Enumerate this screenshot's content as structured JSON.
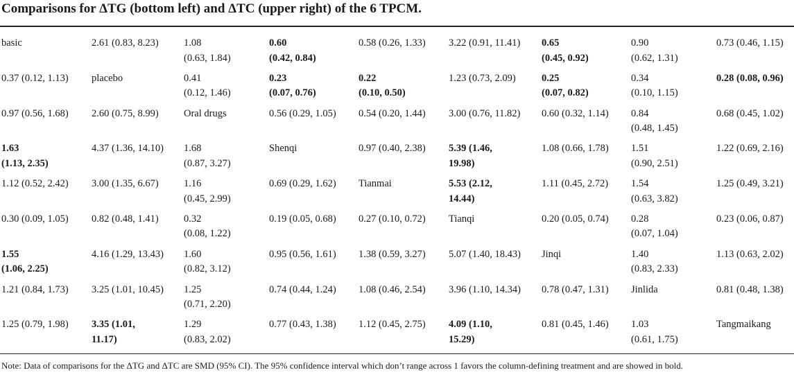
{
  "title": "Comparisons for ΔTG (bottom left) and ΔTC (upper right) of the 6 TPCM.",
  "note": "Note: Data of comparisons for the ΔTG and ΔTC are SMD (95% CI). The 95% confidence interval which don’t range across 1 favors the column-defining treatment and are showed in bold.",
  "rows": [
    [
      {
        "t": "basic",
        "b": false
      },
      {
        "t": "2.61 (0.83, 8.23)",
        "b": false
      },
      {
        "t": "1.08\n(0.63, 1.84)",
        "b": false
      },
      {
        "t": "0.60\n(0.42, 0.84)",
        "b": true
      },
      {
        "t": "0.58 (0.26, 1.33)",
        "b": false
      },
      {
        "t": "3.22 (0.91, 11.41)",
        "b": false
      },
      {
        "t": "0.65\n(0.45, 0.92)",
        "b": true
      },
      {
        "t": "0.90\n(0.62, 1.31)",
        "b": false
      },
      {
        "t": "0.73 (0.46, 1.15)",
        "b": false
      }
    ],
    [
      {
        "t": "0.37 (0.12, 1.13)",
        "b": false
      },
      {
        "t": "placebo",
        "b": false
      },
      {
        "t": "0.41\n(0.12, 1.46)",
        "b": false
      },
      {
        "t": "0.23\n(0.07, 0.76)",
        "b": true
      },
      {
        "t": "0.22\n(0.10, 0.50)",
        "b": true
      },
      {
        "t": "1.23 (0.73, 2.09)",
        "b": false
      },
      {
        "t": "0.25\n(0.07, 0.82)",
        "b": true
      },
      {
        "t": "0.34\n(0.10, 1.15)",
        "b": false
      },
      {
        "t": "0.28 (0.08, 0.96)",
        "b": true
      }
    ],
    [
      {
        "t": "0.97 (0.56, 1.68)",
        "b": false
      },
      {
        "t": "2.60 (0.75, 8.99)",
        "b": false
      },
      {
        "t": "Oral drugs",
        "b": false
      },
      {
        "t": "0.56 (0.29, 1.05)",
        "b": false
      },
      {
        "t": "0.54 (0.20, 1.44)",
        "b": false
      },
      {
        "t": "3.00 (0.76, 11.82)",
        "b": false
      },
      {
        "t": "0.60 (0.32, 1.14)",
        "b": false
      },
      {
        "t": "0.84\n(0.48, 1.45)",
        "b": false
      },
      {
        "t": "0.68 (0.45, 1.02)",
        "b": false
      }
    ],
    [
      {
        "t": "1.63\n(1.13, 2.35)",
        "b": true
      },
      {
        "t": "4.37 (1.36, 14.10)",
        "b": false
      },
      {
        "t": "1.68\n(0.87, 3.27)",
        "b": false
      },
      {
        "t": "Shenqi",
        "b": false
      },
      {
        "t": "0.97 (0.40, 2.38)",
        "b": false
      },
      {
        "t": "5.39 (1.46,\n19.98)",
        "b": true
      },
      {
        "t": "1.08 (0.66, 1.78)",
        "b": false
      },
      {
        "t": "1.51\n(0.90, 2.51)",
        "b": false
      },
      {
        "t": "1.22 (0.69, 2.16)",
        "b": false
      }
    ],
    [
      {
        "t": "1.12 (0.52, 2.42)",
        "b": false
      },
      {
        "t": "3.00 (1.35, 6.67)",
        "b": false
      },
      {
        "t": "1.16\n(0.45, 2.99)",
        "b": false
      },
      {
        "t": "0.69 (0.29, 1.62)",
        "b": false
      },
      {
        "t": "Tianmai",
        "b": false
      },
      {
        "t": "5.53 (2.12,\n14.44)",
        "b": true
      },
      {
        "t": "1.11 (0.45, 2.72)",
        "b": false
      },
      {
        "t": "1.54\n(0.63, 3.82)",
        "b": false
      },
      {
        "t": "1.25 (0.49, 3.21)",
        "b": false
      }
    ],
    [
      {
        "t": "0.30 (0.09, 1.05)",
        "b": false
      },
      {
        "t": "0.82 (0.48, 1.41)",
        "b": false
      },
      {
        "t": "0.32\n(0.08, 1.22)",
        "b": false
      },
      {
        "t": "0.19 (0.05, 0.68)",
        "b": false
      },
      {
        "t": "0.27 (0.10, 0.72)",
        "b": false
      },
      {
        "t": "Tianqi",
        "b": false
      },
      {
        "t": "0.20 (0.05, 0.74)",
        "b": false
      },
      {
        "t": "0.28\n(0.07, 1.04)",
        "b": false
      },
      {
        "t": "0.23 (0.06, 0.87)",
        "b": false
      }
    ],
    [
      {
        "t": "1.55\n(1.06, 2.25)",
        "b": true
      },
      {
        "t": "4.16 (1.29, 13.43)",
        "b": false
      },
      {
        "t": "1.60\n(0.82, 3.12)",
        "b": false
      },
      {
        "t": "0.95 (0.56, 1.61)",
        "b": false
      },
      {
        "t": "1.38 (0.59, 3.27)",
        "b": false
      },
      {
        "t": "5.07 (1.40, 18.43)",
        "b": false
      },
      {
        "t": "Jinqi",
        "b": false
      },
      {
        "t": "1.40\n(0.83, 2.33)",
        "b": false
      },
      {
        "t": "1.13 (0.63, 2.02)",
        "b": false
      }
    ],
    [
      {
        "t": "1.21 (0.84, 1.73)",
        "b": false
      },
      {
        "t": "3.25 (1.01, 10.45)",
        "b": false
      },
      {
        "t": "1.25\n(0.71, 2.20)",
        "b": false
      },
      {
        "t": "0.74 (0.44, 1.24)",
        "b": false
      },
      {
        "t": "1.08 (0.46, 2.54)",
        "b": false
      },
      {
        "t": "3.96 (1.10, 14.34)",
        "b": false
      },
      {
        "t": "0.78 (0.47, 1.31)",
        "b": false
      },
      {
        "t": "Jinlida",
        "b": false
      },
      {
        "t": "0.81 (0.48, 1.38)",
        "b": false
      }
    ],
    [
      {
        "t": "1.25 (0.79, 1.98)",
        "b": false
      },
      {
        "t": "3.35 (1.01,\n11.17)",
        "b": true
      },
      {
        "t": "1.29\n(0.83, 2.02)",
        "b": false
      },
      {
        "t": "0.77 (0.43, 1.38)",
        "b": false
      },
      {
        "t": "1.12 (0.45, 2.75)",
        "b": false
      },
      {
        "t": "4.09 (1.10,\n15.29)",
        "b": true
      },
      {
        "t": "0.81 (0.45, 1.46)",
        "b": false
      },
      {
        "t": "1.03\n(0.61, 1.75)",
        "b": false
      },
      {
        "t": "Tangmaikang",
        "b": false
      }
    ]
  ]
}
